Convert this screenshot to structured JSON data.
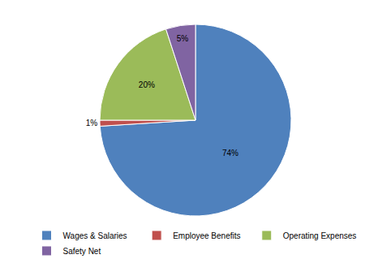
{
  "chart_data": {
    "type": "pie",
    "categories": [
      "Wages & Salaries",
      "Employee Benefits",
      "Operating Expenses",
      "Safety Net"
    ],
    "values": [
      74,
      1,
      20,
      5
    ],
    "value_labels": [
      "74%",
      "1%",
      "20%",
      "5%"
    ],
    "colors": [
      "#4f81bd",
      "#c0504d",
      "#9bbb59",
      "#8064a2"
    ],
    "data_labels": true,
    "legend": "bottom"
  }
}
